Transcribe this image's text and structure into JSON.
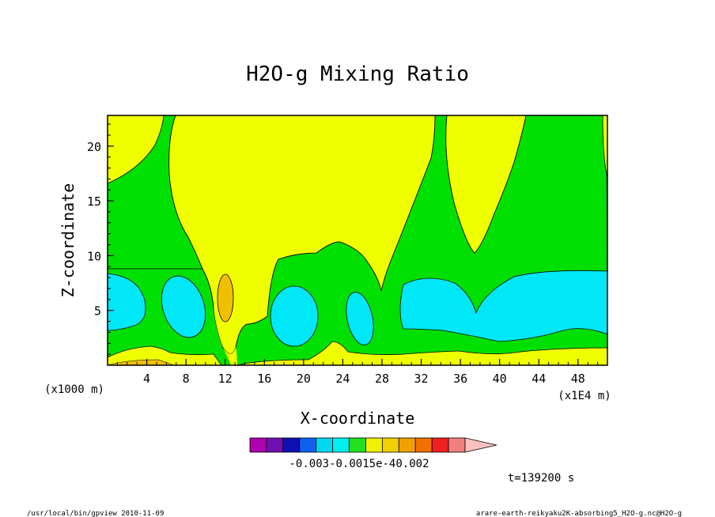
{
  "chart_data": {
    "type": "contour",
    "title": "H2O-g Mixing Ratio",
    "xlabel": "X-coordinate",
    "ylabel": "Z-coordinate",
    "x_unit_left": "(x1000 m)",
    "x_unit_right": "(x1E4 m)",
    "x_ticks": [
      "4",
      "8",
      "12",
      "16",
      "20",
      "24",
      "28",
      "32",
      "36",
      "40",
      "44",
      "48"
    ],
    "y_ticks": [
      "5",
      "10",
      "15",
      "20"
    ],
    "xlim": [
      0,
      51
    ],
    "ylim": [
      0,
      22.8
    ],
    "colorbar": {
      "colors": [
        "#b000b0",
        "#7010b0",
        "#1010b0",
        "#1060f0",
        "#00d8f0",
        "#00f0f0",
        "#20e020",
        "#f0f000",
        "#f0d000",
        "#f0a000",
        "#f07000",
        "#f02020",
        "#f08080",
        "#ffc0c0"
      ],
      "labels": [
        "-0.003",
        "-0.0015e-4",
        "0.002"
      ]
    },
    "regions": {
      "yellow": "#f0ff00",
      "green": "#00e000",
      "cyan": "#00e8f8",
      "orange": "#f0c000"
    },
    "time_label": "t=139200 s"
  },
  "footer": {
    "left": "/usr/local/bin/gpview  2010-11-09",
    "right": "arare-earth-reikyaku2K-absorbing5_H2O-g.nc@H2O-g"
  }
}
